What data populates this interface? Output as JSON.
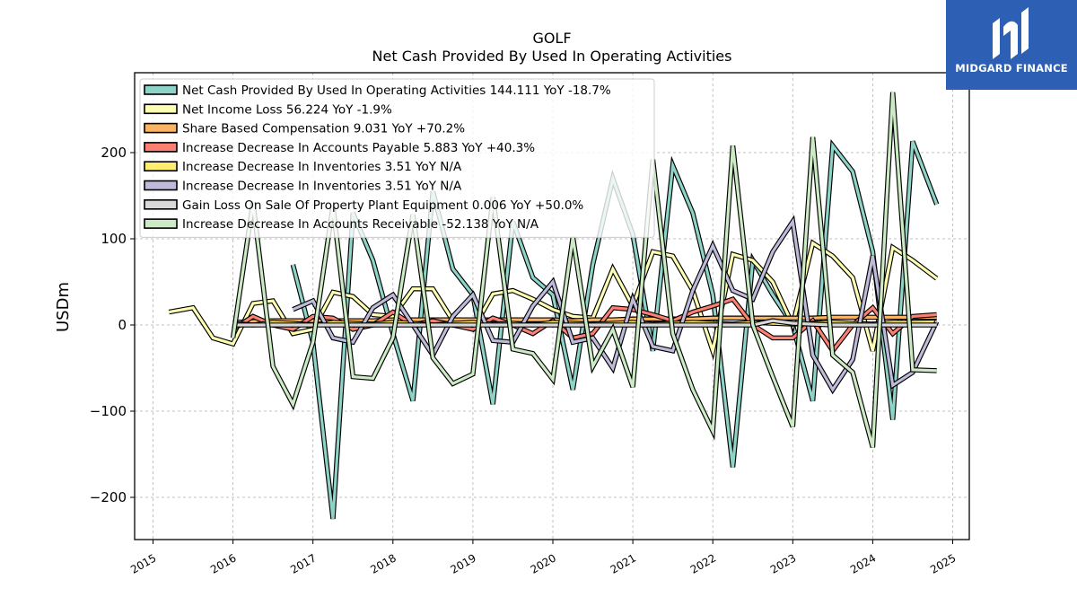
{
  "chart_data": {
    "type": "line",
    "title": "GOLF",
    "subtitle": "Net Cash Provided By Used In Operating Activities",
    "ylabel": "USDm",
    "xlabel": "",
    "xlim": [
      2014.8,
      2025.1
    ],
    "ylim": [
      -250,
      295
    ],
    "xticks": [
      "2015",
      "2016",
      "2017",
      "2018",
      "2019",
      "2020",
      "2021",
      "2022",
      "2023",
      "2024",
      "2025"
    ],
    "yticks": [
      -200,
      -100,
      0,
      100,
      200
    ],
    "ytick_labels": [
      "−200",
      "−100",
      "0",
      "100",
      "200"
    ],
    "grid": true,
    "legend_position": "top-left",
    "series": [
      {
        "name": "Net Cash Provided By Used In Operating Activities",
        "legend": "Net Cash Provided By Used In Operating Activities  144.111 YoY -18.7%",
        "color": "#8dd3c7",
        "points": [
          [
            2016.75,
            70
          ],
          [
            2017.0,
            -20
          ],
          [
            2017.25,
            -225
          ],
          [
            2017.5,
            130
          ],
          [
            2017.75,
            75
          ],
          [
            2018.0,
            -10
          ],
          [
            2018.25,
            -88
          ],
          [
            2018.5,
            155
          ],
          [
            2018.75,
            65
          ],
          [
            2019.0,
            35
          ],
          [
            2019.25,
            -92
          ],
          [
            2019.5,
            120
          ],
          [
            2019.75,
            55
          ],
          [
            2020.0,
            35
          ],
          [
            2020.25,
            -75
          ],
          [
            2020.5,
            70
          ],
          [
            2020.75,
            170
          ],
          [
            2021.0,
            105
          ],
          [
            2021.25,
            -30
          ],
          [
            2021.5,
            185
          ],
          [
            2021.75,
            130
          ],
          [
            2022.0,
            35
          ],
          [
            2022.25,
            -165
          ],
          [
            2022.5,
            75
          ],
          [
            2022.75,
            35
          ],
          [
            2023.0,
            0
          ],
          [
            2023.25,
            -88
          ],
          [
            2023.5,
            208
          ],
          [
            2023.75,
            178
          ],
          [
            2024.0,
            85
          ],
          [
            2024.25,
            -110
          ],
          [
            2024.5,
            213
          ],
          [
            2024.8,
            140
          ]
        ]
      },
      {
        "name": "Net Income Loss",
        "legend": "Net Income Loss  56.224 YoY -1.9%",
        "color": "#ffffb3",
        "points": [
          [
            2015.2,
            15
          ],
          [
            2015.5,
            20
          ],
          [
            2015.75,
            -15
          ],
          [
            2016.0,
            -22
          ],
          [
            2016.25,
            25
          ],
          [
            2016.5,
            28
          ],
          [
            2016.75,
            -10
          ],
          [
            2017.0,
            -5
          ],
          [
            2017.25,
            38
          ],
          [
            2017.5,
            33
          ],
          [
            2017.75,
            12
          ],
          [
            2018.0,
            10
          ],
          [
            2018.25,
            42
          ],
          [
            2018.5,
            42
          ],
          [
            2018.75,
            5
          ],
          [
            2019.0,
            -5
          ],
          [
            2019.25,
            36
          ],
          [
            2019.5,
            40
          ],
          [
            2019.75,
            30
          ],
          [
            2020.0,
            18
          ],
          [
            2020.25,
            10
          ],
          [
            2020.5,
            8
          ],
          [
            2020.75,
            65
          ],
          [
            2021.0,
            22
          ],
          [
            2021.25,
            85
          ],
          [
            2021.5,
            80
          ],
          [
            2021.75,
            40
          ],
          [
            2022.0,
            -30
          ],
          [
            2022.25,
            82
          ],
          [
            2022.5,
            75
          ],
          [
            2022.75,
            50
          ],
          [
            2023.0,
            0
          ],
          [
            2023.25,
            95
          ],
          [
            2023.5,
            80
          ],
          [
            2023.75,
            55
          ],
          [
            2024.0,
            -30
          ],
          [
            2024.25,
            90
          ],
          [
            2024.5,
            75
          ],
          [
            2024.8,
            54
          ]
        ]
      },
      {
        "name": "Share Based Compensation",
        "legend": "Share Based Compensation  9.031 YoY +70.2%",
        "color": "#fdb462",
        "points": [
          [
            2016.0,
            3
          ],
          [
            2016.25,
            4
          ],
          [
            2016.5,
            5
          ],
          [
            2016.75,
            5
          ],
          [
            2017.0,
            5
          ],
          [
            2017.25,
            5
          ],
          [
            2017.5,
            5
          ],
          [
            2017.75,
            5
          ],
          [
            2018.0,
            6
          ],
          [
            2018.25,
            6
          ],
          [
            2018.5,
            6
          ],
          [
            2018.75,
            6
          ],
          [
            2019.0,
            6
          ],
          [
            2019.25,
            6
          ],
          [
            2019.5,
            6
          ],
          [
            2019.75,
            6
          ],
          [
            2020.0,
            6
          ],
          [
            2020.25,
            5
          ],
          [
            2020.5,
            6
          ],
          [
            2020.75,
            6
          ],
          [
            2021.0,
            7
          ],
          [
            2021.25,
            7
          ],
          [
            2021.5,
            7
          ],
          [
            2021.75,
            7
          ],
          [
            2022.0,
            8
          ],
          [
            2022.25,
            8
          ],
          [
            2022.5,
            8
          ],
          [
            2022.75,
            8
          ],
          [
            2023.0,
            8
          ],
          [
            2023.25,
            8
          ],
          [
            2023.5,
            9
          ],
          [
            2023.75,
            9
          ],
          [
            2024.0,
            9
          ],
          [
            2024.25,
            9
          ],
          [
            2024.5,
            9
          ],
          [
            2024.8,
            9
          ]
        ]
      },
      {
        "name": "Increase Decrease In Accounts Payable",
        "legend": "Increase Decrease In Accounts Payable  5.883 YoY +40.3%",
        "color": "#fb8072",
        "points": [
          [
            2016.0,
            -5
          ],
          [
            2016.25,
            10
          ],
          [
            2016.5,
            0
          ],
          [
            2016.75,
            -5
          ],
          [
            2017.0,
            10
          ],
          [
            2017.25,
            8
          ],
          [
            2017.5,
            -5
          ],
          [
            2017.75,
            0
          ],
          [
            2018.0,
            15
          ],
          [
            2018.25,
            0
          ],
          [
            2018.5,
            5
          ],
          [
            2018.75,
            0
          ],
          [
            2019.0,
            -5
          ],
          [
            2019.25,
            8
          ],
          [
            2019.5,
            0
          ],
          [
            2019.75,
            -10
          ],
          [
            2020.0,
            5
          ],
          [
            2020.25,
            -15
          ],
          [
            2020.5,
            -10
          ],
          [
            2020.75,
            20
          ],
          [
            2021.0,
            18
          ],
          [
            2021.25,
            12
          ],
          [
            2021.5,
            5
          ],
          [
            2021.75,
            15
          ],
          [
            2022.0,
            22
          ],
          [
            2022.25,
            30
          ],
          [
            2022.5,
            0
          ],
          [
            2022.75,
            -15
          ],
          [
            2023.0,
            -15
          ],
          [
            2023.25,
            5
          ],
          [
            2023.5,
            -30
          ],
          [
            2023.75,
            0
          ],
          [
            2024.0,
            20
          ],
          [
            2024.25,
            -10
          ],
          [
            2024.5,
            10
          ],
          [
            2024.8,
            12
          ]
        ]
      },
      {
        "name": "Increase Decrease In Inventories",
        "legend": "Increase Decrease In Inventories  3.51 YoY N/A",
        "color": "#ffed6f",
        "points": [
          [
            2016.0,
            2
          ],
          [
            2016.25,
            0
          ],
          [
            2016.5,
            3
          ],
          [
            2016.75,
            2
          ],
          [
            2017.0,
            0
          ],
          [
            2017.25,
            3
          ],
          [
            2017.5,
            2
          ],
          [
            2017.75,
            1
          ],
          [
            2018.0,
            3
          ],
          [
            2018.25,
            2
          ],
          [
            2018.5,
            0
          ],
          [
            2018.75,
            2
          ],
          [
            2019.0,
            3
          ],
          [
            2019.25,
            1
          ],
          [
            2019.5,
            2
          ],
          [
            2019.75,
            0
          ],
          [
            2020.0,
            3
          ],
          [
            2020.25,
            2
          ],
          [
            2020.5,
            1
          ],
          [
            2020.75,
            2
          ],
          [
            2021.0,
            3
          ],
          [
            2021.25,
            1
          ],
          [
            2021.5,
            2
          ],
          [
            2021.75,
            3
          ],
          [
            2022.0,
            2
          ],
          [
            2022.25,
            1
          ],
          [
            2022.5,
            3
          ],
          [
            2022.75,
            2
          ],
          [
            2023.0,
            1
          ],
          [
            2023.25,
            2
          ],
          [
            2023.5,
            3
          ],
          [
            2023.75,
            2
          ],
          [
            2024.0,
            1
          ],
          [
            2024.25,
            3
          ],
          [
            2024.5,
            3
          ],
          [
            2024.8,
            3.5
          ]
        ]
      },
      {
        "name": "Increase Decrease In Inventories",
        "legend": "Increase Decrease In Inventories  3.51 YoY N/A",
        "color": "#bebada",
        "points": [
          [
            2016.75,
            18
          ],
          [
            2017.0,
            28
          ],
          [
            2017.25,
            -15
          ],
          [
            2017.5,
            -20
          ],
          [
            2017.75,
            20
          ],
          [
            2018.0,
            35
          ],
          [
            2018.25,
            0
          ],
          [
            2018.5,
            -35
          ],
          [
            2018.75,
            10
          ],
          [
            2019.0,
            35
          ],
          [
            2019.25,
            -18
          ],
          [
            2019.5,
            -20
          ],
          [
            2019.75,
            22
          ],
          [
            2020.0,
            50
          ],
          [
            2020.25,
            -20
          ],
          [
            2020.5,
            -15
          ],
          [
            2020.75,
            -50
          ],
          [
            2021.0,
            30
          ],
          [
            2021.25,
            -25
          ],
          [
            2021.5,
            -30
          ],
          [
            2021.75,
            40
          ],
          [
            2022.0,
            92
          ],
          [
            2022.25,
            40
          ],
          [
            2022.5,
            30
          ],
          [
            2022.75,
            85
          ],
          [
            2023.0,
            120
          ],
          [
            2023.25,
            -35
          ],
          [
            2023.5,
            -75
          ],
          [
            2023.75,
            -40
          ],
          [
            2024.0,
            80
          ],
          [
            2024.25,
            -70
          ],
          [
            2024.5,
            -55
          ],
          [
            2024.8,
            4
          ]
        ]
      },
      {
        "name": "Gain Loss On Sale Of Property Plant Equipment",
        "legend": "Gain Loss On Sale Of Property Plant Equipment  0.006 YoY +50.0%",
        "color": "#d9d9d9",
        "points": [
          [
            2016.0,
            0
          ],
          [
            2016.5,
            0
          ],
          [
            2017.0,
            0
          ],
          [
            2017.5,
            0
          ],
          [
            2018.0,
            0
          ],
          [
            2018.5,
            0
          ],
          [
            2019.0,
            0
          ],
          [
            2019.5,
            0
          ],
          [
            2020.0,
            0
          ],
          [
            2020.5,
            0
          ],
          [
            2021.0,
            0
          ],
          [
            2021.5,
            0
          ],
          [
            2022.0,
            0
          ],
          [
            2022.5,
            0
          ],
          [
            2022.75,
            5
          ],
          [
            2023.0,
            2
          ],
          [
            2023.5,
            0
          ],
          [
            2024.0,
            0
          ],
          [
            2024.5,
            0
          ],
          [
            2024.8,
            0
          ]
        ]
      },
      {
        "name": "Increase Decrease In Accounts Receivable",
        "legend": "Increase Decrease In Accounts Receivable  -52.138 YoY N/A",
        "color": "#ccebc5",
        "points": [
          [
            2016.0,
            -15
          ],
          [
            2016.25,
            142
          ],
          [
            2016.5,
            -48
          ],
          [
            2016.75,
            -92
          ],
          [
            2017.0,
            -20
          ],
          [
            2017.25,
            138
          ],
          [
            2017.5,
            -60
          ],
          [
            2017.75,
            -62
          ],
          [
            2018.0,
            -15
          ],
          [
            2018.25,
            128
          ],
          [
            2018.5,
            -38
          ],
          [
            2018.75,
            -68
          ],
          [
            2019.0,
            -57
          ],
          [
            2019.25,
            148
          ],
          [
            2019.5,
            -28
          ],
          [
            2019.75,
            -33
          ],
          [
            2020.0,
            -63
          ],
          [
            2020.25,
            102
          ],
          [
            2020.5,
            -48
          ],
          [
            2020.75,
            -5
          ],
          [
            2021.0,
            -72
          ],
          [
            2021.25,
            192
          ],
          [
            2021.5,
            -10
          ],
          [
            2021.75,
            -75
          ],
          [
            2022.0,
            -123
          ],
          [
            2022.25,
            208
          ],
          [
            2022.5,
            0
          ],
          [
            2022.75,
            -60
          ],
          [
            2023.0,
            -118
          ],
          [
            2023.25,
            218
          ],
          [
            2023.5,
            -35
          ],
          [
            2023.75,
            -55
          ],
          [
            2024.0,
            -142
          ],
          [
            2024.25,
            270
          ],
          [
            2024.5,
            -52
          ],
          [
            2024.8,
            -53
          ]
        ]
      }
    ]
  },
  "logo": {
    "text": "MIDGARD FINANCE"
  }
}
